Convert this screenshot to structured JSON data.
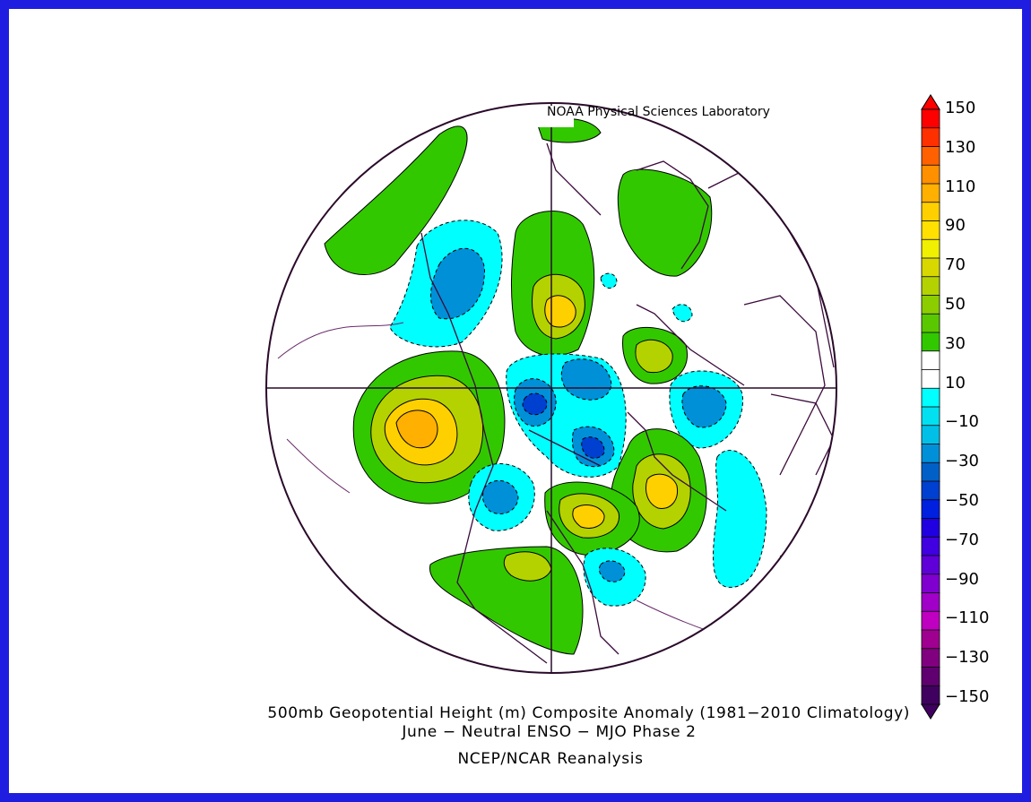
{
  "credit": "NOAA Physical Sciences Laboratory",
  "title_line1": "500mb Geopotential Height (m) Composite Anomaly (1981−2010 Climatology)",
  "title_line2": "June − Neutral ENSO − MJO Phase 2",
  "title_line3": "NCEP/NCAR Reanalysis",
  "projection": "north-polar-stereographic",
  "colorbar": {
    "labels": [
      "150",
      "130",
      "110",
      "90",
      "70",
      "50",
      "30",
      "10",
      "−10",
      "−30",
      "−50",
      "−70",
      "−90",
      "−110",
      "−130",
      "−150"
    ],
    "colors": [
      "#ff0000",
      "#ff3000",
      "#ff6000",
      "#ff9000",
      "#ffb000",
      "#ffd000",
      "#ffe000",
      "#f0f000",
      "#d8d800",
      "#b4d200",
      "#8ccd00",
      "#5ac800",
      "#32c800",
      "#ffffff",
      "#ffffff",
      "#00ffff",
      "#00e0f0",
      "#00c0e8",
      "#0090d8",
      "#0060c8",
      "#0040d0",
      "#0020e0",
      "#2000e0",
      "#4000e0",
      "#6000d8",
      "#8000d0",
      "#a000c8",
      "#c000c0",
      "#a00090",
      "#800080",
      "#600070",
      "#400060"
    ]
  },
  "colors": {
    "frame": "#1f1ee0",
    "outline": "#3a0a3a"
  }
}
